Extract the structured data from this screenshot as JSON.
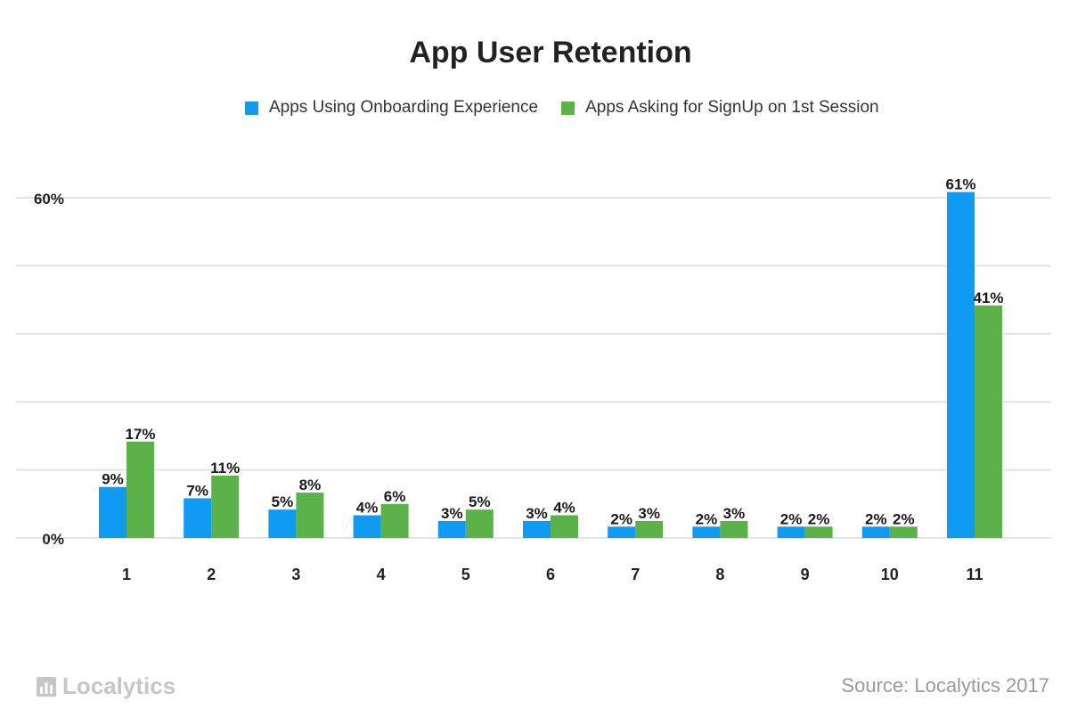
{
  "colors": {
    "series_a": "#109bf2",
    "series_b": "#5cb24a",
    "grid": "#e3e3e3",
    "text": "#222222"
  },
  "brand": {
    "name": "Localytics",
    "icon": "bar-chart-logo-icon"
  },
  "source": "Source: Localytics 2017",
  "chart_data": {
    "type": "bar",
    "title": "App User Retention",
    "xlabel": "",
    "ylabel": "",
    "categories": [
      "1",
      "2",
      "3",
      "4",
      "5",
      "6",
      "7",
      "8",
      "9",
      "10",
      "11"
    ],
    "series": [
      {
        "name": "Apps Using Onboarding Experience",
        "values": [
          9,
          7,
          5,
          4,
          3,
          3,
          2,
          2,
          2,
          2,
          61
        ],
        "labels": [
          "9%",
          "7%",
          "5%",
          "4%",
          "3%",
          "3%",
          "2%",
          "2%",
          "2%",
          "2%",
          "61%"
        ]
      },
      {
        "name": "Apps Asking for SignUp on 1st Session",
        "values": [
          17,
          11,
          8,
          6,
          5,
          4,
          3,
          3,
          2,
          2,
          41
        ],
        "labels": [
          "17%",
          "11%",
          "8%",
          "6%",
          "5%",
          "4%",
          "3%",
          "3%",
          "2%",
          "2%",
          "41%"
        ]
      }
    ],
    "ylim": [
      0,
      60
    ],
    "gridlines": [
      0,
      12,
      24,
      36,
      48,
      60
    ],
    "yticks": [
      {
        "value": 0,
        "label": "0%"
      },
      {
        "value": 60,
        "label": "60%"
      }
    ],
    "grid": true,
    "legend": "top-center"
  }
}
